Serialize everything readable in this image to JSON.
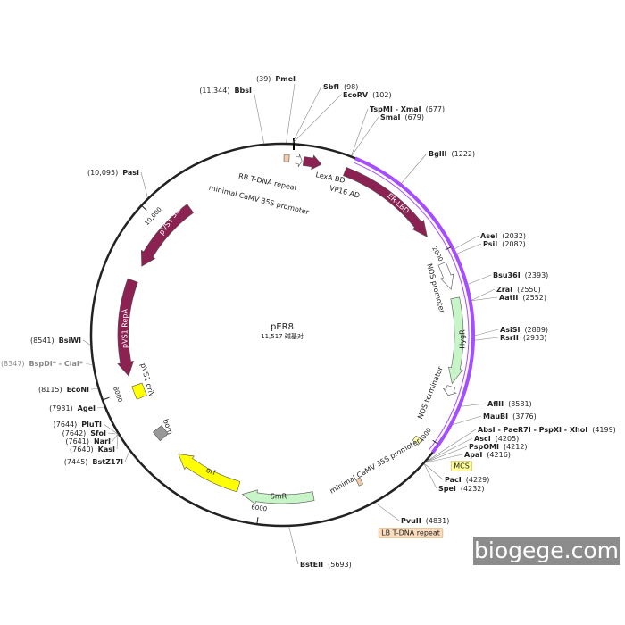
{
  "title": "pER8",
  "length": "11,517 碱基对",
  "ticks": [
    2000,
    4000,
    6000,
    8000,
    {
      "value": 10000,
      "label": "10,000"
    }
  ],
  "features": [
    {
      "label": "RB T-DNA repeat"
    },
    {
      "label": "LexA BD"
    },
    {
      "label": "VP16 AD"
    },
    {
      "label": "minimal CaMV 35S promoter"
    },
    {
      "label": "ER-LBD"
    },
    {
      "label": "NOS promoter"
    },
    {
      "label": "HygR"
    },
    {
      "label": "NOS terminator"
    },
    {
      "label": "minimal CaMV 35S promoter"
    },
    {
      "label": "MCS"
    },
    {
      "label": "LB T-DNA repeat"
    },
    {
      "label": "SmR"
    },
    {
      "label": "ori"
    },
    {
      "label": "bom"
    },
    {
      "label": "pVS1 oriV"
    },
    {
      "label": "pVS1 RepA"
    },
    {
      "label": "pVS1 StaA"
    }
  ],
  "sites": [
    {
      "name": "PmeI",
      "pos": "(39)"
    },
    {
      "name": "BbsI",
      "pos": "(11,344)"
    },
    {
      "name": "SbfI",
      "pos": "(98)"
    },
    {
      "name": "EcoRV",
      "pos": "(102)"
    },
    {
      "name": "TspMI - XmaI",
      "pos": "(677)"
    },
    {
      "name": "SmaI",
      "pos": "(679)"
    },
    {
      "name": "BglII",
      "pos": "(1222)"
    },
    {
      "name": "AseI",
      "pos": "(2032)"
    },
    {
      "name": "PsiI",
      "pos": "(2082)"
    },
    {
      "name": "Bsu36I",
      "pos": "(2393)"
    },
    {
      "name": "ZraI",
      "pos": "(2550)"
    },
    {
      "name": "AatII",
      "pos": "(2552)"
    },
    {
      "name": "AsiSI",
      "pos": "(2889)"
    },
    {
      "name": "RsrII",
      "pos": "(2933)"
    },
    {
      "name": "AflII",
      "pos": "(3581)"
    },
    {
      "name": "MauBI",
      "pos": "(3776)"
    },
    {
      "name": "AbsI - PaeR7I - PspXI - XhoI",
      "pos": "(4199)"
    },
    {
      "name": "AscI",
      "pos": "(4205)"
    },
    {
      "name": "PspOMI",
      "pos": "(4212)"
    },
    {
      "name": "ApaI",
      "pos": "(4216)"
    },
    {
      "name": "PacI",
      "pos": "(4229)"
    },
    {
      "name": "SpeI",
      "pos": "(4232)"
    },
    {
      "name": "PvuII",
      "pos": "(4831)"
    },
    {
      "name": "BstEII",
      "pos": "(5693)"
    },
    {
      "name": "PasI",
      "pos": "(10,095)"
    },
    {
      "name": "BsiWI",
      "pos": "(8541)"
    },
    {
      "name": "BspDI* - ClaI*",
      "pos": "(8347)"
    },
    {
      "name": "EcoNI",
      "pos": "(8115)"
    },
    {
      "name": "AgeI",
      "pos": "(7931)"
    },
    {
      "name": "PluTI",
      "pos": "(7644)"
    },
    {
      "name": "SfoI",
      "pos": "(7642)"
    },
    {
      "name": "NarI",
      "pos": "(7641)"
    },
    {
      "name": "KasI",
      "pos": "(7640)"
    },
    {
      "name": "BstZ17I",
      "pos": "(7445)"
    }
  ],
  "watermark": "biogege.com"
}
